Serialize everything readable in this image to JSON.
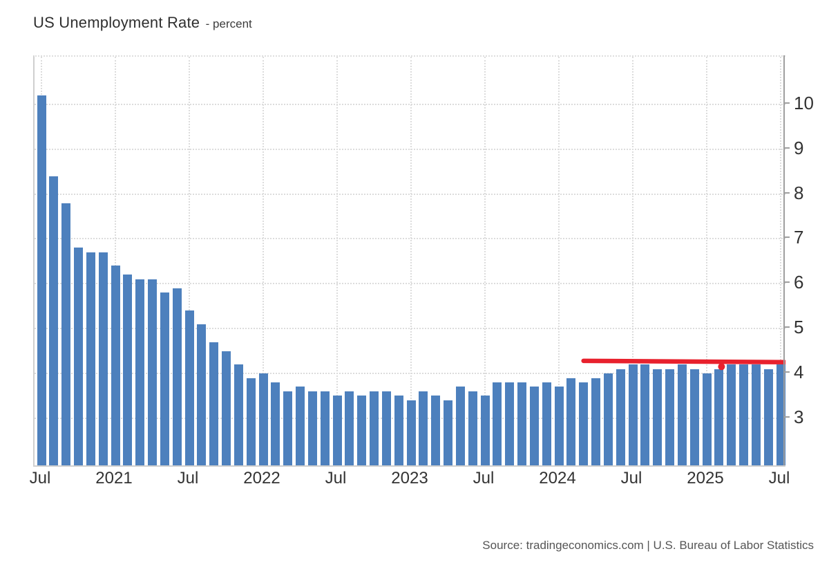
{
  "title": {
    "main": "US Unemployment Rate",
    "subtitle": "- percent"
  },
  "source_note": "Source: tradingeconomics.com | U.S. Bureau of Labor Statistics",
  "colors": {
    "bar": "#4d80bd",
    "annotation_red": "#e8212d",
    "grid": "#dcdcdc",
    "axis": "#9e9e9e",
    "plot_border": "#cfcfcf",
    "tick_label": "#333333",
    "source_text": "#555555"
  },
  "chart_data": {
    "type": "bar",
    "title": "US Unemployment Rate",
    "ylabel_unit": "percent",
    "x_first_bar": "Jul 2020",
    "x_last_bar": "Jul 2025",
    "x_tick_labels": [
      "Jul",
      "2021",
      "Jul",
      "2022",
      "Jul",
      "2023",
      "Jul",
      "2024",
      "Jul",
      "2025",
      "Jul"
    ],
    "x_ticks_every_n_bars": 6,
    "y_tick_labels": [
      3,
      4,
      5,
      6,
      7,
      8,
      9,
      10
    ],
    "ylim": [
      1.95,
      11.06
    ],
    "grid": true,
    "legend": "none",
    "values": [
      10.2,
      8.4,
      7.8,
      6.8,
      6.7,
      6.7,
      6.4,
      6.2,
      6.1,
      6.1,
      5.8,
      5.9,
      5.4,
      5.1,
      4.7,
      4.5,
      4.2,
      3.9,
      4.0,
      3.8,
      3.6,
      3.7,
      3.6,
      3.6,
      3.5,
      3.6,
      3.5,
      3.6,
      3.6,
      3.5,
      3.4,
      3.6,
      3.5,
      3.4,
      3.7,
      3.6,
      3.5,
      3.8,
      3.8,
      3.8,
      3.7,
      3.8,
      3.7,
      3.9,
      3.8,
      3.9,
      4.0,
      4.1,
      4.2,
      4.2,
      4.1,
      4.1,
      4.2,
      4.1,
      4.0,
      4.1,
      4.2,
      4.2,
      4.2,
      4.1,
      4.2
    ],
    "annotation": {
      "type": "drawn-marker-line",
      "color": "#e8212d",
      "stroke_width": 6.5,
      "y_value_start": 4.28,
      "y_value_end": 4.25,
      "from_bar_index": 44,
      "to_x": "right-axis",
      "dot_bar_index": 55.2,
      "dot_y_value": 4.15,
      "dot_radius": 5
    }
  }
}
